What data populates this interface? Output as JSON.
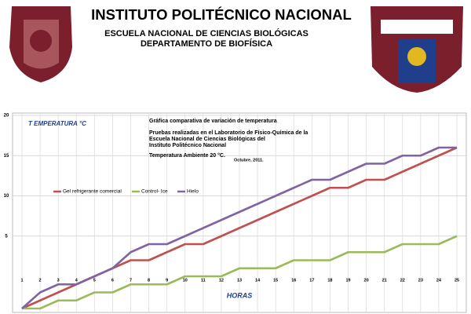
{
  "header": {
    "title": "INSTITUTO POLITÉCNICO NACIONAL",
    "subtitle": "ESCUELA NACIONAL DE CIENCIAS BIOLÓGICAS",
    "department": "DEPARTAMENTO DE BIOFÍSICA"
  },
  "chart_data": {
    "type": "line",
    "title": "Gráfica comparativa de variación de temperatura",
    "subtitle_lines": [
      "Pruebas realizadas en el Laboratorio de Físico-Química de la",
      "Escuela Nacional de Ciencias Biológicas del",
      "Instituto Politécnico Nacional"
    ],
    "annotations": [
      "Temperatura  Ambiente 20 °C.",
      "Octubre, 2011."
    ],
    "y_label": "T EMPERATURA °C",
    "x_label": "HORAS",
    "categories": [
      "1",
      "2",
      "3",
      "4",
      "5",
      "6",
      "7",
      "8",
      "9",
      "10",
      "11",
      "12",
      "13",
      "14",
      "15",
      "16",
      "17",
      "18",
      "19",
      "20",
      "21",
      "22",
      "23",
      "24",
      "25"
    ],
    "series": [
      {
        "name": "Gel refrigerante comercial",
        "color": "#c0504d",
        "values": [
          -4,
          -3,
          -2,
          -1,
          0,
          1,
          2,
          2,
          3,
          4,
          4,
          5,
          6,
          7,
          8,
          9,
          10,
          11,
          11,
          12,
          12,
          13,
          14,
          15,
          16
        ]
      },
      {
        "name": "Control- Ice",
        "color": "#9bbb59",
        "values": [
          -4,
          -4,
          -3,
          -3,
          -2,
          -2,
          -1,
          -1,
          -1,
          0,
          0,
          0,
          1,
          1,
          1,
          2,
          2,
          2,
          3,
          3,
          3,
          4,
          4,
          4,
          5
        ]
      },
      {
        "name": "Hielo",
        "color": "#8064a2",
        "values": [
          -4,
          -2,
          -1,
          -1,
          0,
          1,
          3,
          4,
          4,
          5,
          6,
          7,
          8,
          9,
          10,
          11,
          12,
          12,
          13,
          14,
          14,
          15,
          15,
          16,
          16
        ]
      }
    ],
    "ylim": [
      -4,
      20
    ],
    "yticks": [
      5,
      10,
      15,
      20
    ],
    "grid": true
  }
}
